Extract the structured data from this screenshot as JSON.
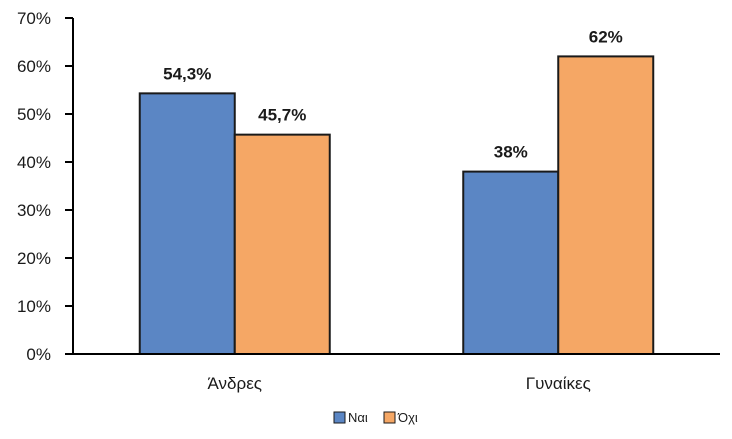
{
  "chart_data": {
    "type": "bar",
    "categories": [
      "Άνδρες",
      "Γυναίκες"
    ],
    "series": [
      {
        "name": "Ναι",
        "values": [
          54.3,
          38
        ],
        "labels": [
          "54,3%",
          "38%"
        ],
        "color": "#5b86c4"
      },
      {
        "name": "Όχι",
        "values": [
          45.7,
          62
        ],
        "labels": [
          "45,7%",
          "62%"
        ],
        "color": "#f5a765"
      }
    ],
    "ylim": [
      0,
      70
    ],
    "yticks": [
      0,
      10,
      20,
      30,
      40,
      50,
      60,
      70
    ],
    "ytick_labels": [
      "0%",
      "10%",
      "20%",
      "30%",
      "40%",
      "50%",
      "60%",
      "70%"
    ],
    "title": "",
    "xlabel": "",
    "ylabel": "",
    "grid": false,
    "legend_position": "bottom-center"
  }
}
